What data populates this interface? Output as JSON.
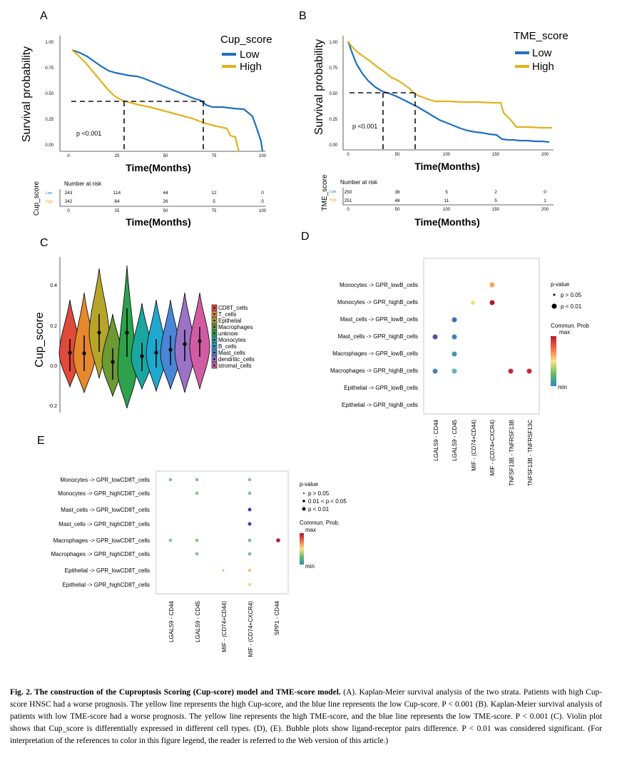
{
  "panels": {
    "a": "A",
    "b": "B",
    "c": "C",
    "d": "D",
    "e": "E"
  },
  "colors": {
    "low": "#1f6fc0",
    "high": "#e3b21c",
    "dash": "#111111",
    "axis": "#222222"
  },
  "km_a": {
    "legend_title": "Cup_score",
    "legend_low": "Low",
    "legend_high": "High",
    "ylabel": "Survival probability",
    "xlabel": "Time(Months)",
    "pval": "p <0.001",
    "yticks": [
      "1.00",
      "0.75",
      "0.50",
      "0.25",
      "0.00"
    ],
    "xticks": [
      "0",
      "25",
      "50",
      "75",
      "100"
    ],
    "risk_title": "Number at risk",
    "risk_ylabel": "Cup_score",
    "risk_low_label": "Low",
    "risk_high_label": "High",
    "risk_low": [
      "243",
      "114",
      "44",
      "12",
      "0"
    ],
    "risk_high": [
      "242",
      "84",
      "26",
      "5",
      "0"
    ],
    "risk_xlabel": "Time(Months)",
    "risk_xticks": [
      "0",
      "25",
      "50",
      "75",
      "100"
    ]
  },
  "km_b": {
    "legend_title": "TME_score",
    "legend_low": "Low",
    "legend_high": "High",
    "ylabel": "Survival probability",
    "xlabel": "Time(Months)",
    "pval": "p <0.001",
    "yticks": [
      "1.00",
      "0.75",
      "0.50",
      "0.25",
      "0.00"
    ],
    "xticks": [
      "0",
      "50",
      "100",
      "150",
      "200"
    ],
    "risk_title": "Number at risk",
    "risk_ylabel": "TME_score",
    "risk_low_label": "Low",
    "risk_high_label": "High",
    "risk_low": [
      "250",
      "38",
      "5",
      "2",
      "0"
    ],
    "risk_high": [
      "251",
      "48",
      "11",
      "5",
      "1"
    ],
    "risk_xlabel": "Time(Months)",
    "risk_xticks": [
      "0",
      "50",
      "100",
      "150",
      "200"
    ]
  },
  "violin": {
    "ylabel": "Cup_score",
    "yticks": [
      "0.4",
      "0.2",
      "0.0",
      "-0.2"
    ],
    "cells": [
      {
        "name": "CD8T_cells",
        "color": "#e04a3a"
      },
      {
        "name": "T_cells",
        "color": "#e6892c"
      },
      {
        "name": "Epithelial",
        "color": "#b7a52a"
      },
      {
        "name": "Macrophages",
        "color": "#6c9a33"
      },
      {
        "name": "unknow",
        "color": "#2ea14d"
      },
      {
        "name": "Monocytes",
        "color": "#1aa7a1"
      },
      {
        "name": "B_cells",
        "color": "#1fa8cf"
      },
      {
        "name": "Mast_cells",
        "color": "#4a86d6"
      },
      {
        "name": "dendritic_cells",
        "color": "#9a72c6"
      },
      {
        "name": "stromal_cells",
        "color": "#d25ca4"
      }
    ]
  },
  "bubble_d": {
    "rows": [
      "Monocytes -> GPR_lowB_cells",
      "Monocytes -> GPR_highB_cells",
      "Mast_cells -> GPR_lowB_cells",
      "Mast_cells -> GPR_highB_cells",
      "Macrophages -> GPR_lowB_cells",
      "Macrophages -> GPR_highB_cells",
      "Epithelial -> GPR_lowB_cells",
      "Epithelial -> GPR_highB_cells"
    ],
    "cols": [
      "LGALS9 - CD44",
      "LGALS9 - CD45",
      "MIF - (CD74+CD44)",
      "MIF - (CD74+CXCR4)",
      "TNFSF13B - TNFRSF13B",
      "TNFSF13B - TNFRSF13C"
    ],
    "legend_p": "p-value",
    "legend_p1": "p > 0.05",
    "legend_p2": "p < 0.01",
    "legend_prob": "Commun. Prob",
    "legend_max": "max",
    "legend_min": "min"
  },
  "bubble_e": {
    "rows": [
      "Monocytes -> GPR_lowCD8T_cells",
      "Monocytes -> GPR_highCD8T_cells",
      "Mast_cells -> GPR_lowCD8T_cells",
      "Mast_cells -> GPR_highCD8T_cells",
      "Macrophages -> GPR_lowCD8T_cells",
      "Macrophages -> GPR_highCD8T_cells",
      "Epithelial -> GPR_lowCD8T_cells",
      "Epithelial -> GPR_highCD8T_cells"
    ],
    "cols": [
      "LGALS9 - CD44",
      "LGALS9 - CD45",
      "MIF - (CD74+CD44)",
      "MIF - (CD74+CXCR4)",
      "SPP1 - CD44"
    ],
    "legend_p": "p-value",
    "legend_p1": "p > 0.05",
    "legend_p2": "0.01 < p < 0.05",
    "legend_p3": "p < 0.01",
    "legend_prob": "Commun. Prob.",
    "legend_max": "max",
    "legend_min": "min"
  },
  "caption": {
    "title": "Fig. 2.  The construction of the Cuproptosis Scoring (Cup-score) model and TME-score model.",
    "body": " (A). Kaplan-Meier survival analysis of the two strata. Patients with high Cup-score HNSC had a worse prognosis. The yellow line represents the high Cup-score, and the blue line represents the low Cup-score. P < 0.001 (B). Kaplan-Meier survival analysis of patients with low TME-score had a worse prognosis. The yellow line represents the high TME-score, and the blue line represents the low TME-score. P < 0.001 (C). Violin plot shows that Cup_score is differentially expressed in different cell types. (D), (E). Bubble plots show ligand-receptor pairs difference. P < 0.01 was considered significant. (For interpretation of the references to color in this figure legend, the reader is referred to the Web version of this article.)"
  }
}
